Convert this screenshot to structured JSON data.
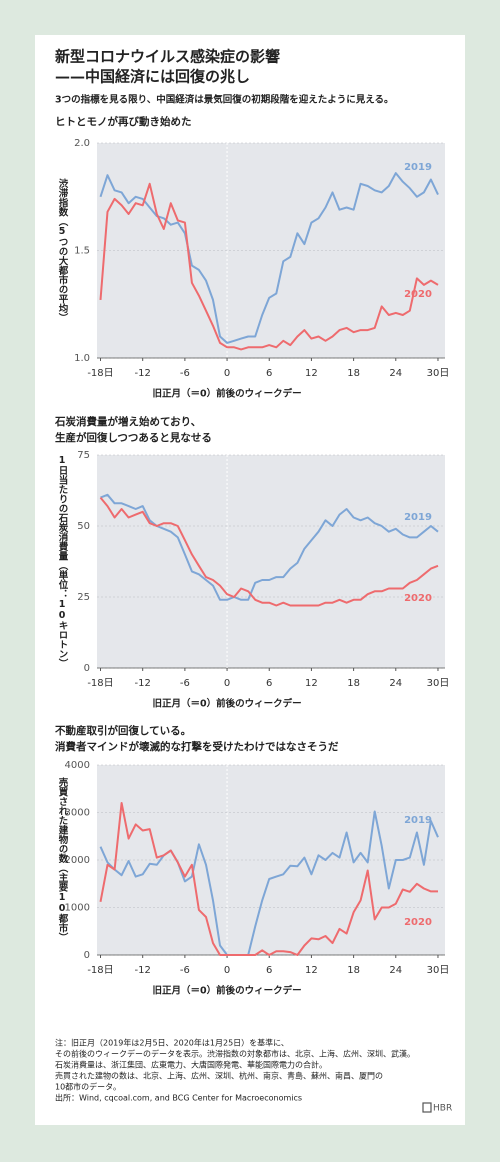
{
  "title": [
    "新型コロナウイルス感染症の影響",
    "——中国経済には回復の兆し"
  ],
  "subtitle": "3つの指標を見る限り、中国経済は景気回復の初期段階を迎えたように見える。",
  "notes": [
    "注：旧正月（2019年は2月5日、2020年は1月25日）を基準に、",
    "その前後のウィークデーのデータを表示。渋滞指数の対象都市は、北京、上海、広州、深圳、武漢。",
    "石炭消費量は、浙江集団、広東電力、大唐国際発電、華能国際電力の合計。",
    "売買された建物の数は、北京、上海、広州、深圳、杭州、南京、青島、蘇州、南昌、厦門の",
    "10都市のデータ。",
    "出所：Wind, cqcoal.com, and BCG Center for Macroeconomics"
  ],
  "brand": "HBR",
  "chart_data": [
    {
      "type": "line",
      "title": [
        "ヒトとモノが再び動き始めた"
      ],
      "ylabel": "渋滞指数（5つの大都市の平均）",
      "xlabel": "旧正月（＝0）前後のウィークデー",
      "x": [
        -18,
        -17,
        -16,
        -15,
        -14,
        -13,
        -12,
        -11,
        -10,
        -9,
        -8,
        -7,
        -6,
        -5,
        -4,
        -3,
        -2,
        -1,
        0,
        1,
        2,
        3,
        4,
        5,
        6,
        7,
        8,
        9,
        10,
        11,
        12,
        13,
        14,
        15,
        16,
        17,
        18,
        19,
        20,
        21,
        22,
        23,
        24,
        25,
        26,
        27,
        28,
        29,
        30
      ],
      "series": [
        {
          "name": "2019",
          "color": "#7ea6d6",
          "values": [
            1.75,
            1.85,
            1.78,
            1.77,
            1.72,
            1.75,
            1.74,
            1.7,
            1.66,
            1.65,
            1.62,
            1.63,
            1.58,
            1.43,
            1.41,
            1.36,
            1.27,
            1.1,
            1.07,
            1.08,
            1.09,
            1.1,
            1.1,
            1.2,
            1.28,
            1.3,
            1.45,
            1.47,
            1.58,
            1.53,
            1.63,
            1.65,
            1.7,
            1.77,
            1.69,
            1.7,
            1.69,
            1.81,
            1.8,
            1.78,
            1.77,
            1.8,
            1.86,
            1.82,
            1.79,
            1.75,
            1.77,
            1.83,
            1.76
          ]
        },
        {
          "name": "2020",
          "color": "#ee6b6e",
          "values": [
            1.27,
            1.68,
            1.74,
            1.71,
            1.67,
            1.72,
            1.71,
            1.81,
            1.67,
            1.6,
            1.72,
            1.64,
            1.63,
            1.35,
            1.29,
            1.22,
            1.15,
            1.07,
            1.05,
            1.05,
            1.04,
            1.05,
            1.05,
            1.05,
            1.06,
            1.05,
            1.08,
            1.06,
            1.1,
            1.13,
            1.09,
            1.1,
            1.08,
            1.1,
            1.13,
            1.14,
            1.12,
            1.13,
            1.13,
            1.14,
            1.24,
            1.2,
            1.21,
            1.2,
            1.22,
            1.37,
            1.34,
            1.36,
            1.34
          ]
        }
      ],
      "xlim": [
        -18.5,
        31
      ],
      "ylim": [
        1.0,
        2.0
      ],
      "xticks": [
        {
          "value": -18,
          "label": "-18日"
        },
        -12,
        -6,
        0,
        6,
        12,
        18,
        24,
        {
          "value": 30,
          "label": "30日"
        }
      ],
      "yticks": [
        {
          "value": 1.0,
          "label": "1.0"
        },
        1.5,
        {
          "value": 2.0,
          "label": "2.0"
        }
      ],
      "grid": true,
      "xref": 0
    },
    {
      "type": "line",
      "title": [
        "石炭消費量が増え始めており、",
        "生産が回復しつつあると見なせる"
      ],
      "ylabel": "1日当たりの石炭消費量（単位：10キロトン）",
      "xlabel": "旧正月（＝0）前後のウィークデー",
      "x": [
        -18,
        -17,
        -16,
        -15,
        -14,
        -13,
        -12,
        -11,
        -10,
        -9,
        -8,
        -7,
        -6,
        -5,
        -4,
        -3,
        -2,
        -1,
        0,
        1,
        2,
        3,
        4,
        5,
        6,
        7,
        8,
        9,
        10,
        11,
        12,
        13,
        14,
        15,
        16,
        17,
        18,
        19,
        20,
        21,
        22,
        23,
        24,
        25,
        26,
        27,
        28,
        29,
        30
      ],
      "series": [
        {
          "name": "2019",
          "color": "#7ea6d6",
          "values": [
            60,
            61,
            58,
            58,
            57,
            56,
            57,
            52,
            50,
            49,
            48,
            46,
            40,
            34,
            33,
            31,
            29,
            24,
            24,
            25,
            24,
            24,
            30,
            31,
            31,
            32,
            32,
            35,
            37,
            42,
            45,
            48,
            52,
            50,
            54,
            56,
            53,
            52,
            53,
            51,
            50,
            48,
            49,
            47,
            46,
            46,
            48,
            50,
            48
          ]
        },
        {
          "name": "2020",
          "color": "#ee6b6e",
          "values": [
            60,
            57,
            53,
            56,
            53,
            54,
            55,
            51,
            50,
            51,
            51,
            50,
            45,
            40,
            36,
            32,
            31,
            29,
            26,
            25,
            28,
            27,
            24,
            23,
            23,
            22,
            23,
            22,
            22,
            22,
            22,
            22,
            23,
            23,
            24,
            23,
            24,
            24,
            26,
            27,
            27,
            28,
            28,
            28,
            30,
            31,
            33,
            35,
            36
          ]
        }
      ],
      "xlim": [
        -18.5,
        31
      ],
      "ylim": [
        0,
        75
      ],
      "xticks": [
        {
          "value": -18,
          "label": "-18日"
        },
        -12,
        -6,
        0,
        6,
        12,
        18,
        24,
        {
          "value": 30,
          "label": "30日"
        }
      ],
      "yticks": [
        0,
        25,
        50,
        75
      ],
      "grid": true,
      "xref": 0
    },
    {
      "type": "line",
      "title": [
        "不動産取引が回復している。",
        "消費者マインドが壊滅的な打撃を受けたわけではなさそうだ"
      ],
      "ylabel": "売買された建物の数（主要10都市）",
      "xlabel": "旧正月（＝0）前後のウィークデー",
      "x": [
        -18,
        -17,
        -16,
        -15,
        -14,
        -13,
        -12,
        -11,
        -10,
        -9,
        -8,
        -7,
        -6,
        -5,
        -4,
        -3,
        -2,
        -1,
        0,
        1,
        2,
        3,
        4,
        5,
        6,
        7,
        8,
        9,
        10,
        11,
        12,
        13,
        14,
        15,
        16,
        17,
        18,
        19,
        20,
        21,
        22,
        23,
        24,
        25,
        26,
        27,
        28,
        29,
        30
      ],
      "series": [
        {
          "name": "2019",
          "color": "#7ea6d6",
          "values": [
            2280,
            1950,
            1800,
            1680,
            1980,
            1650,
            1700,
            1920,
            1900,
            2100,
            2200,
            1950,
            1550,
            1650,
            2330,
            1900,
            1150,
            200,
            0,
            0,
            0,
            0,
            600,
            1150,
            1600,
            1650,
            1700,
            1880,
            1870,
            2050,
            1700,
            2100,
            2000,
            2150,
            2050,
            2580,
            1950,
            2150,
            1950,
            3020,
            2300,
            1400,
            2000,
            2000,
            2050,
            2580,
            1900,
            2820,
            2480
          ]
        },
        {
          "name": "2020",
          "color": "#ee6b6e",
          "values": [
            1120,
            1900,
            1800,
            3200,
            2450,
            2750,
            2620,
            2650,
            2050,
            2100,
            2200,
            1950,
            1650,
            1900,
            950,
            800,
            250,
            0,
            0,
            0,
            0,
            0,
            0,
            100,
            0,
            80,
            80,
            60,
            0,
            200,
            350,
            330,
            400,
            250,
            550,
            450,
            900,
            1150,
            1780,
            750,
            1000,
            1000,
            1080,
            1380,
            1330,
            1500,
            1400,
            1340,
            1340
          ]
        }
      ],
      "xlim": [
        -18.5,
        31
      ],
      "ylim": [
        0,
        4000
      ],
      "xticks": [
        {
          "value": -18,
          "label": "-18日"
        },
        -12,
        -6,
        0,
        6,
        12,
        18,
        24,
        {
          "value": 30,
          "label": "30日"
        }
      ],
      "yticks": [
        0,
        1000,
        2000,
        3000,
        4000
      ],
      "grid": true,
      "xref": 0
    }
  ]
}
